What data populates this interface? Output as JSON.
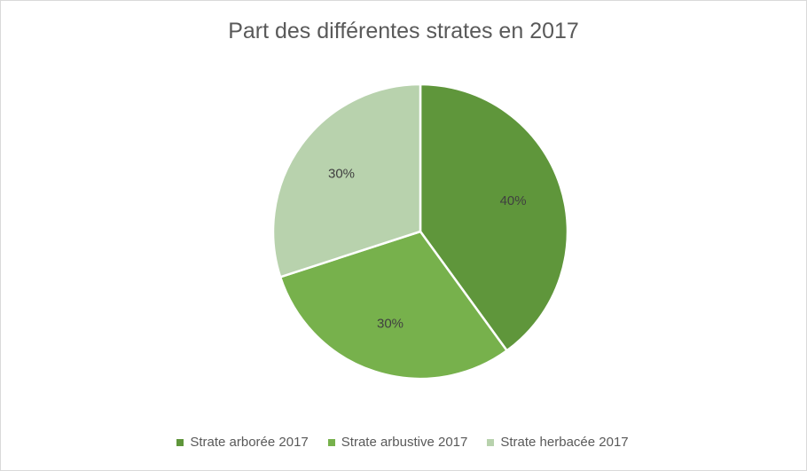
{
  "chart_data": {
    "type": "pie",
    "title": "Part des différentes strates en 2017",
    "categories": [
      "Strate arborée 2017",
      "Strate arbustive 2017",
      "Strate herbacée 2017"
    ],
    "values": [
      40,
      30,
      30
    ],
    "labels": [
      "40%",
      "30%",
      "30%"
    ],
    "colors": [
      "#5f963b",
      "#77b14c",
      "#b8d2ad"
    ],
    "legend_position": "bottom"
  }
}
